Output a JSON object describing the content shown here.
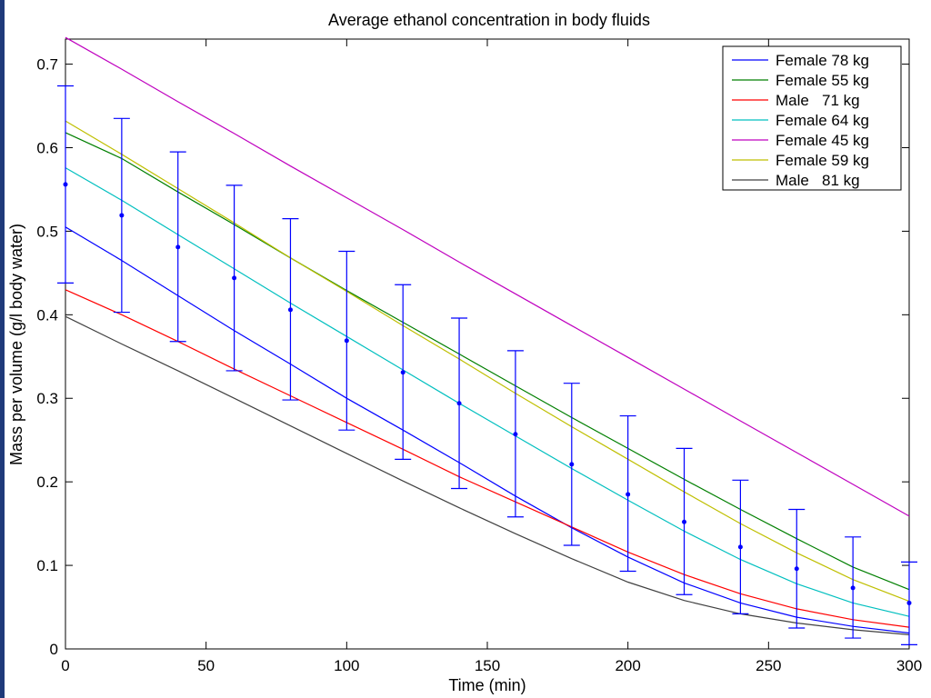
{
  "chart_data": {
    "type": "line",
    "title": "Average ethanol concentration in body fluids",
    "xlabel": "Time (min)",
    "ylabel": "Mass per volume (g/l body water)",
    "xlim": [
      0,
      300
    ],
    "ylim": [
      0,
      0.73
    ],
    "x_ticks": [
      0,
      50,
      100,
      150,
      200,
      250,
      300
    ],
    "y_ticks": [
      0,
      0.1,
      0.2,
      0.3,
      0.4,
      0.5,
      0.6,
      0.7
    ],
    "grid": false,
    "legend_position": "top-right",
    "series": [
      {
        "name": "Female 78 kg",
        "color": "#0000ff",
        "x": [
          0,
          20,
          40,
          60,
          80,
          100,
          120,
          140,
          160,
          180,
          200,
          220,
          240,
          260,
          280,
          300
        ],
        "y": [
          0.505,
          0.465,
          0.423,
          0.381,
          0.341,
          0.3,
          0.262,
          0.223,
          0.183,
          0.145,
          0.11,
          0.079,
          0.055,
          0.038,
          0.027,
          0.019
        ]
      },
      {
        "name": "Female 55 kg",
        "color": "#007f00",
        "x": [
          0,
          20,
          40,
          60,
          80,
          100,
          120,
          140,
          160,
          180,
          200,
          220,
          240,
          260,
          280,
          300
        ],
        "y": [
          0.618,
          0.587,
          0.547,
          0.508,
          0.468,
          0.429,
          0.391,
          0.353,
          0.315,
          0.277,
          0.24,
          0.203,
          0.167,
          0.132,
          0.098,
          0.071
        ]
      },
      {
        "name": "Male   71 kg",
        "color": "#ff0000",
        "x": [
          0,
          20,
          40,
          60,
          80,
          100,
          120,
          140,
          160,
          180,
          200,
          220,
          240,
          260,
          280,
          300
        ],
        "y": [
          0.43,
          0.4,
          0.368,
          0.335,
          0.303,
          0.271,
          0.239,
          0.206,
          0.176,
          0.146,
          0.116,
          0.089,
          0.066,
          0.048,
          0.035,
          0.026
        ]
      },
      {
        "name": "Female 64 kg",
        "color": "#00bfbf",
        "x": [
          0,
          20,
          40,
          60,
          80,
          100,
          120,
          140,
          160,
          180,
          200,
          220,
          240,
          260,
          280,
          300
        ],
        "y": [
          0.576,
          0.537,
          0.496,
          0.455,
          0.414,
          0.374,
          0.334,
          0.294,
          0.255,
          0.216,
          0.178,
          0.141,
          0.107,
          0.078,
          0.055,
          0.039
        ]
      },
      {
        "name": "Female 45 kg",
        "color": "#bf00bf",
        "x": [
          0,
          20,
          40,
          60,
          80,
          100,
          120,
          140,
          160,
          180,
          200,
          220,
          240,
          260,
          280,
          300
        ],
        "y": [
          0.732,
          0.694,
          0.655,
          0.617,
          0.578,
          0.54,
          0.502,
          0.463,
          0.425,
          0.387,
          0.349,
          0.311,
          0.273,
          0.235,
          0.197,
          0.159
        ]
      },
      {
        "name": "Female 59 kg",
        "color": "#bfbf00",
        "x": [
          0,
          20,
          40,
          60,
          80,
          100,
          120,
          140,
          160,
          180,
          200,
          220,
          240,
          260,
          280,
          300
        ],
        "y": [
          0.632,
          0.592,
          0.551,
          0.51,
          0.468,
          0.428,
          0.387,
          0.347,
          0.306,
          0.266,
          0.227,
          0.188,
          0.15,
          0.115,
          0.083,
          0.057
        ]
      },
      {
        "name": "Male   81 kg",
        "color": "#404040",
        "x": [
          0,
          20,
          40,
          60,
          80,
          100,
          120,
          140,
          160,
          180,
          200,
          220,
          240,
          260,
          280,
          300
        ],
        "y": [
          0.398,
          0.365,
          0.333,
          0.3,
          0.267,
          0.234,
          0.201,
          0.169,
          0.138,
          0.108,
          0.08,
          0.058,
          0.042,
          0.031,
          0.023,
          0.017
        ]
      }
    ],
    "error_bars": {
      "color": "#0000ff",
      "x": [
        0,
        20,
        40,
        60,
        80,
        100,
        120,
        140,
        160,
        180,
        200,
        220,
        240,
        260,
        280,
        300
      ],
      "mean": [
        0.556,
        0.519,
        0.481,
        0.444,
        0.406,
        0.369,
        0.331,
        0.294,
        0.257,
        0.221,
        0.185,
        0.152,
        0.122,
        0.096,
        0.073,
        0.055
      ],
      "low": [
        0.438,
        0.403,
        0.368,
        0.333,
        0.298,
        0.262,
        0.227,
        0.192,
        0.158,
        0.124,
        0.093,
        0.065,
        0.042,
        0.025,
        0.013,
        0.005
      ],
      "high": [
        0.674,
        0.635,
        0.595,
        0.555,
        0.515,
        0.476,
        0.436,
        0.396,
        0.357,
        0.318,
        0.279,
        0.24,
        0.202,
        0.167,
        0.134,
        0.104
      ]
    }
  }
}
